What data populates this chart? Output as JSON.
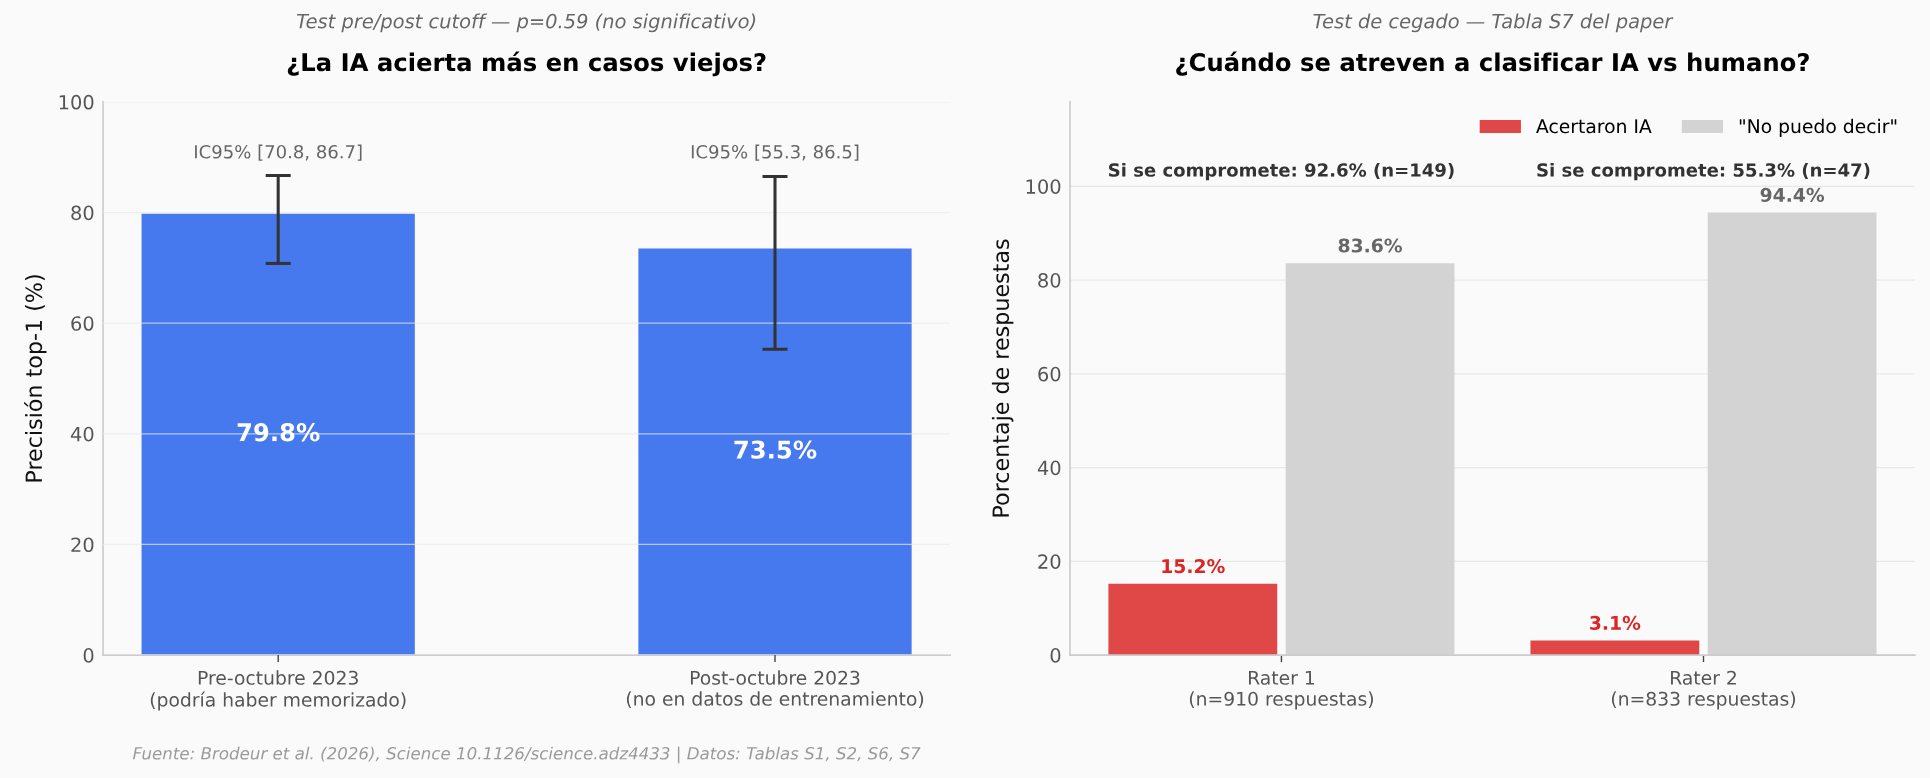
{
  "chart_data": [
    {
      "type": "bar",
      "title": "¿La IA acierta más en casos viejos?",
      "subtitle": "Test pre/post cutoff — p=0.59 (no significativo)",
      "ylabel": "Precisión top-1 (%)",
      "categories": [
        "Pre-octubre 2023\n(podría haber memorizado)",
        "Post-octubre 2023\n(no en datos de entrenamiento)"
      ],
      "values": [
        79.8,
        73.5
      ],
      "color": "#4679ee",
      "errors": [
        [
          70.8,
          86.7
        ],
        [
          55.3,
          86.5
        ]
      ],
      "value_labels": [
        "79.8%",
        "73.5%"
      ],
      "ylim": [
        0,
        100
      ],
      "yticks": [
        0,
        20,
        40,
        60,
        80,
        100
      ],
      "grid": "y",
      "annotations": [
        "IC95% [70.8, 86.7]",
        "IC95% [55.3, 86.5]",
        "Fuente: Brodeur et al. (2026), Science 10.1126/science.adz4433 | Datos: Tablas S1, S2, S6, S7"
      ]
    },
    {
      "type": "bar",
      "title": "¿Cuándo se atreven a clasificar IA vs humano?",
      "subtitle": "Test de cegado — Tabla S7 del paper",
      "ylabel": "Porcentaje de respuestas",
      "categories": [
        "Rater 1\n(n=910 respuestas)",
        "Rater 2\n(n=833 respuestas)"
      ],
      "series": [
        {
          "name": "Acertaron IA",
          "color": "#e04848",
          "values": [
            15.2,
            3.1
          ],
          "value_labels": [
            "15.2%",
            "3.1%"
          ]
        },
        {
          "name": "\"No puedo decir\"",
          "color": "#d3d3d3",
          "values": [
            83.6,
            94.4
          ],
          "value_labels": [
            "83.6%",
            "94.4%"
          ]
        }
      ],
      "ylim": [
        0,
        118
      ],
      "yticks": [
        0,
        20,
        40,
        60,
        80,
        100
      ],
      "grid": "y",
      "legend": "top right",
      "annotations": [
        "Si se compromete: 92.6% (n=149)",
        "Si se compromete: 55.3% (n=47)"
      ]
    }
  ]
}
